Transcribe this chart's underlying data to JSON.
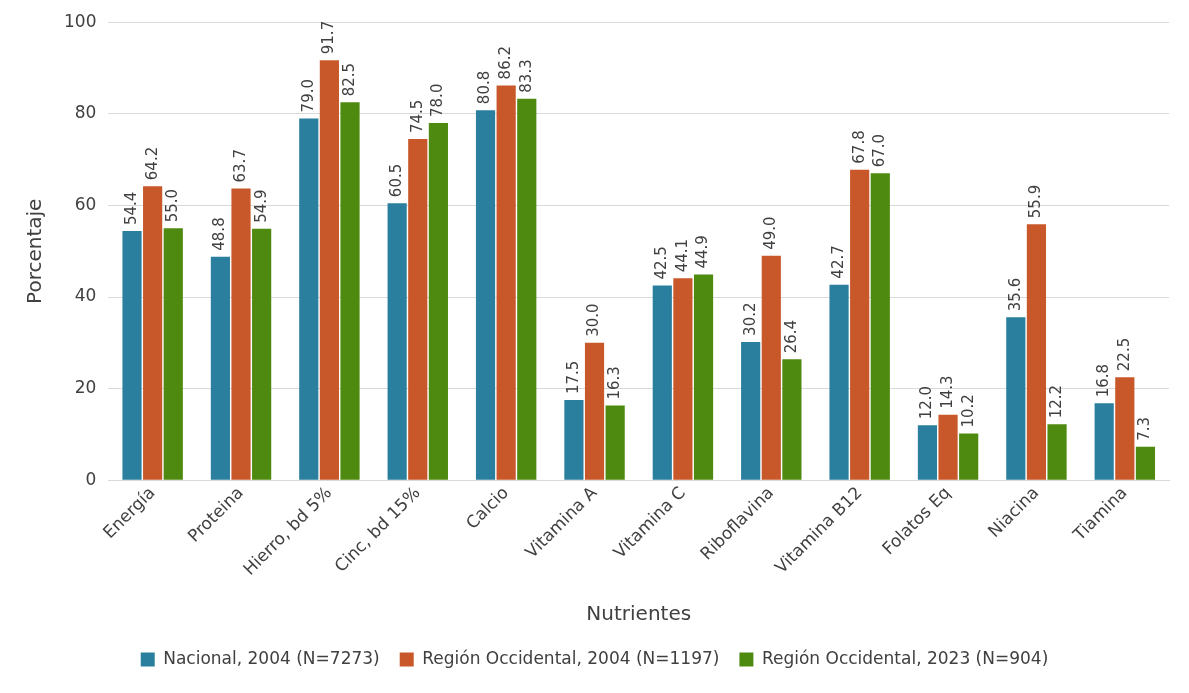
{
  "chart_data": {
    "type": "bar",
    "xlabel": "Nutrientes",
    "ylabel": "Porcentaje",
    "categories": [
      "Energía",
      "Proteina",
      "Hierro, bd 5%",
      "Cinc, bd 15%",
      "Calcio",
      "Vitamina A",
      "Vitamina C",
      "Riboflavina",
      "Vitamina B12",
      "Folatos Eq",
      "Niacina",
      "Tiamina"
    ],
    "series": [
      {
        "name": "Nacional, 2004 (N=7273)",
        "color": "#2a7f9e",
        "values": [
          54.4,
          48.8,
          79.0,
          60.5,
          80.8,
          17.5,
          42.5,
          30.2,
          42.7,
          12.0,
          35.6,
          16.8
        ],
        "value_labels": [
          "54.4",
          "48.8",
          "79.0",
          "60.5",
          "80.8",
          "17.5",
          "42.5",
          "30.2",
          "42.7",
          "12.0",
          "35.6",
          "16.8"
        ]
      },
      {
        "name": "Región Occidental, 2004 (N=1197)",
        "color": "#c8582a",
        "values": [
          64.2,
          63.7,
          91.7,
          74.5,
          86.2,
          30.0,
          44.1,
          49.0,
          67.8,
          14.3,
          55.9,
          22.5
        ],
        "value_labels": [
          "64.2",
          "63.7",
          "91.7",
          "74.5",
          "86.2",
          "30.0",
          "44.1",
          "49.0",
          "67.8",
          "14.3",
          "55.9",
          "22.5"
        ]
      },
      {
        "name": "Región Occidental, 2023 (N=904)",
        "color": "#4e8a0f",
        "values": [
          55.0,
          54.9,
          82.5,
          78.0,
          83.3,
          16.3,
          44.9,
          26.4,
          67.0,
          10.2,
          12.2,
          7.3
        ],
        "value_labels": [
          "55.0",
          "54.9",
          "82.5",
          "78.0",
          "83.3",
          "16.3",
          "44.9",
          "26.4",
          "67.0",
          "10.2",
          "12.2",
          "7.3"
        ]
      }
    ],
    "ylim": [
      0,
      100
    ],
    "yticks": [
      0,
      20,
      40,
      60,
      80,
      100
    ],
    "grid": "y",
    "legend": "bottom"
  }
}
